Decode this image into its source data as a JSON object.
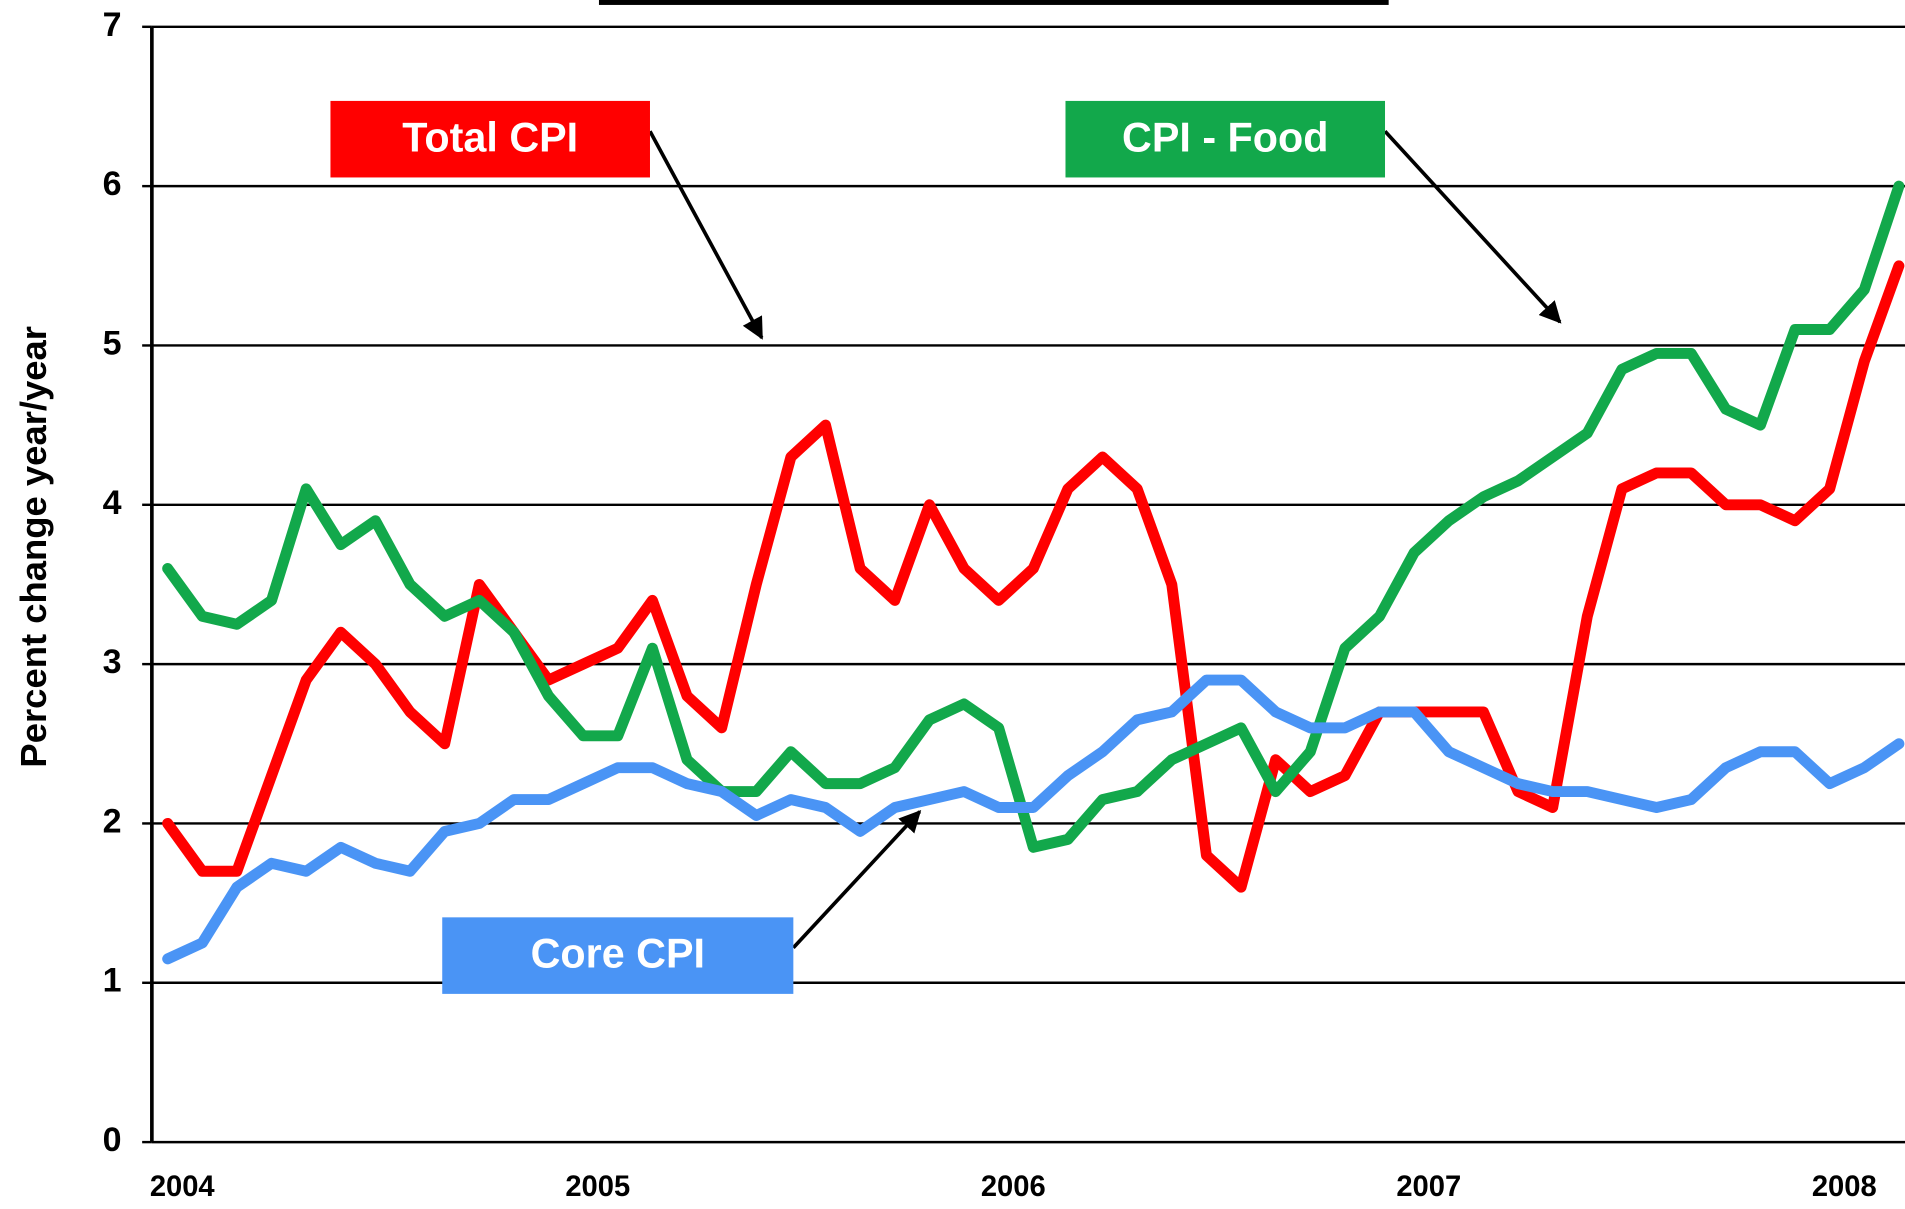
{
  "chart_data": {
    "type": "line",
    "y_label": "Percent change year/year",
    "categories": [
      "2004",
      null,
      null,
      null,
      null,
      null,
      null,
      null,
      null,
      null,
      null,
      null,
      "2005",
      null,
      null,
      null,
      null,
      null,
      null,
      null,
      null,
      null,
      null,
      null,
      "2006",
      null,
      null,
      null,
      null,
      null,
      null,
      null,
      null,
      null,
      null,
      null,
      "2007",
      null,
      null,
      null,
      null,
      null,
      null,
      null,
      null,
      null,
      null,
      null,
      "2008",
      null,
      null
    ],
    "series": [
      {
        "name": "Total CPI",
        "color": "#ff0000",
        "values": [
          2.0,
          1.7,
          1.7,
          2.3,
          2.9,
          3.2,
          3.0,
          2.7,
          2.5,
          3.5,
          3.2,
          2.9,
          3.0,
          3.1,
          3.4,
          2.8,
          2.6,
          3.5,
          4.3,
          4.5,
          3.6,
          3.4,
          4.0,
          3.6,
          3.4,
          3.6,
          4.1,
          4.3,
          4.1,
          3.5,
          1.8,
          1.6,
          2.4,
          2.2,
          2.3,
          2.7,
          2.7,
          2.7,
          2.7,
          2.2,
          2.1,
          3.3,
          4.1,
          4.2,
          4.2,
          4.0,
          4.0,
          3.9,
          4.1,
          4.9,
          5.5
        ]
      },
      {
        "name": "CPI - Food",
        "color": "#12a84b",
        "values": [
          3.6,
          3.3,
          3.25,
          3.4,
          4.1,
          3.75,
          3.9,
          3.5,
          3.3,
          3.4,
          3.2,
          2.8,
          2.55,
          2.55,
          3.1,
          2.4,
          2.2,
          2.2,
          2.45,
          2.25,
          2.25,
          2.35,
          2.65,
          2.75,
          2.6,
          1.85,
          1.9,
          2.15,
          2.2,
          2.4,
          2.5,
          2.6,
          2.2,
          2.45,
          3.1,
          3.3,
          3.7,
          3.9,
          4.05,
          4.15,
          4.3,
          4.45,
          4.85,
          4.95,
          4.95,
          4.6,
          4.5,
          5.1,
          5.1,
          5.35,
          6.0
        ]
      },
      {
        "name": "Core CPI",
        "color": "#4a94f5",
        "values": [
          1.15,
          1.25,
          1.6,
          1.75,
          1.7,
          1.85,
          1.75,
          1.7,
          1.95,
          2.0,
          2.15,
          2.15,
          2.25,
          2.35,
          2.35,
          2.25,
          2.2,
          2.05,
          2.15,
          2.1,
          1.95,
          2.1,
          2.15,
          2.2,
          2.1,
          2.1,
          2.3,
          2.45,
          2.65,
          2.7,
          2.9,
          2.9,
          2.7,
          2.6,
          2.6,
          2.7,
          2.7,
          2.45,
          2.35,
          2.25,
          2.2,
          2.2,
          2.15,
          2.1,
          2.15,
          2.35,
          2.45,
          2.45,
          2.25,
          2.35,
          2.5
        ]
      }
    ],
    "ylim": [
      0,
      7
    ],
    "yticks": [
      0,
      1,
      2,
      3,
      4,
      5,
      6,
      7
    ],
    "grid": true
  }
}
